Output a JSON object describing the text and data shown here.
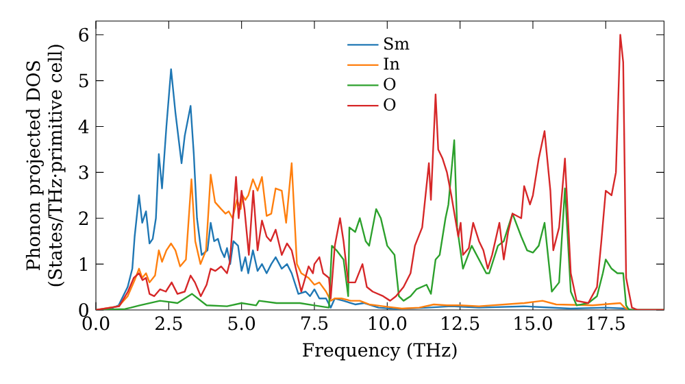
{
  "chart_data": {
    "type": "line",
    "xlabel": "Frequency (THz)",
    "ylabel": "Phonon projected DOS (States/THz·primitive cell)",
    "xlim": [
      0,
      19.5
    ],
    "ylim": [
      0,
      6.3
    ],
    "xticks": [
      {
        "value": 0,
        "label": "0.0"
      },
      {
        "value": 2.5,
        "label": "2.5"
      },
      {
        "value": 5,
        "label": "5.0"
      },
      {
        "value": 7.5,
        "label": "7.5"
      },
      {
        "value": 10,
        "label": "10.0"
      },
      {
        "value": 12.5,
        "label": "12.5"
      },
      {
        "value": 15,
        "label": "15.0"
      },
      {
        "value": 17.5,
        "label": "17.5"
      }
    ],
    "yticks": [
      0,
      1,
      2,
      3,
      4,
      5,
      6
    ],
    "grid": false,
    "legend": "top",
    "marker": "none",
    "line_style": "solid",
    "series": [
      {
        "name": "Sm",
        "color": "#1f77b4",
        "x": [
          0,
          0.47,
          0.78,
          1.09,
          1.25,
          1.33,
          1.48,
          1.59,
          1.72,
          1.84,
          1.95,
          2.06,
          2.16,
          2.27,
          2.42,
          2.58,
          2.73,
          2.94,
          3.05,
          3.25,
          3.36,
          3.47,
          3.63,
          3.83,
          3.94,
          4.06,
          4.19,
          4.3,
          4.41,
          4.5,
          4.61,
          4.72,
          4.88,
          5.0,
          5.13,
          5.23,
          5.39,
          5.55,
          5.7,
          5.86,
          6.02,
          6.17,
          6.38,
          6.56,
          6.72,
          6.95,
          7.2,
          7.35,
          7.5,
          7.67,
          7.9,
          8.06,
          8.2,
          8.5,
          8.9,
          9.2,
          9.7,
          10.3,
          11.4,
          12.2,
          13.15,
          14.7,
          15.33,
          16.3,
          17.5,
          18.2,
          18.4,
          19.5
        ],
        "values": [
          0,
          0.02,
          0.1,
          0.5,
          0.9,
          1.6,
          2.5,
          1.9,
          2.15,
          1.45,
          1.55,
          2.0,
          3.4,
          2.65,
          4.0,
          5.25,
          4.3,
          3.2,
          3.8,
          4.45,
          3.4,
          2.0,
          1.2,
          1.3,
          1.9,
          1.5,
          1.55,
          1.3,
          1.15,
          1.35,
          1.0,
          1.5,
          1.4,
          0.85,
          1.15,
          0.8,
          1.3,
          0.85,
          1.0,
          0.8,
          1.0,
          1.15,
          0.9,
          1.0,
          0.8,
          0.35,
          0.4,
          0.3,
          0.45,
          0.25,
          0.25,
          0.05,
          0.25,
          0.2,
          0.12,
          0.15,
          0.05,
          0.02,
          0.05,
          0.08,
          0.05,
          0.08,
          0.06,
          0.03,
          0.05,
          0.03,
          0,
          0
        ]
      },
      {
        "name": "In",
        "color": "#ff7f0e",
        "x": [
          0,
          0.78,
          1.09,
          1.33,
          1.48,
          1.59,
          1.72,
          1.84,
          2.03,
          2.16,
          2.27,
          2.42,
          2.58,
          2.73,
          2.89,
          3.09,
          3.28,
          3.41,
          3.59,
          3.78,
          3.94,
          4.09,
          4.3,
          4.45,
          4.56,
          4.69,
          4.84,
          4.97,
          5.03,
          5.13,
          5.23,
          5.39,
          5.55,
          5.7,
          5.86,
          6.02,
          6.17,
          6.38,
          6.53,
          6.72,
          6.9,
          7.05,
          7.3,
          7.5,
          7.67,
          7.9,
          8.06,
          8.2,
          8.43,
          8.75,
          9.06,
          9.38,
          9.86,
          10.5,
          11.1,
          11.6,
          12.05,
          12.5,
          13.15,
          14.7,
          15.33,
          15.8,
          17.05,
          18.0,
          18.15,
          18.3,
          19.5
        ],
        "values": [
          0,
          0.08,
          0.3,
          0.65,
          0.9,
          0.7,
          0.8,
          0.6,
          0.75,
          1.3,
          1.05,
          1.3,
          1.45,
          1.3,
          0.95,
          1.1,
          2.85,
          1.5,
          1.0,
          1.3,
          2.95,
          2.35,
          2.2,
          2.1,
          2.15,
          2.0,
          2.4,
          2.2,
          2.5,
          2.4,
          2.5,
          2.85,
          2.6,
          2.9,
          2.05,
          2.1,
          2.65,
          2.6,
          1.9,
          3.2,
          1.0,
          0.8,
          0.7,
          0.55,
          0.6,
          0.4,
          0.2,
          0.25,
          0.25,
          0.2,
          0.2,
          0.12,
          0.08,
          0.03,
          0.05,
          0.12,
          0.1,
          0.1,
          0.08,
          0.15,
          0.2,
          0.12,
          0.1,
          0.15,
          0.05,
          0,
          0
        ]
      },
      {
        "name": "O",
        "color": "#2ca02c",
        "x": [
          0,
          1.0,
          1.2,
          1.5,
          2.2,
          2.8,
          3.3,
          3.8,
          4.5,
          5.0,
          5.5,
          5.6,
          6.2,
          7.0,
          7.5,
          8.0,
          8.1,
          8.26,
          8.5,
          8.66,
          8.7,
          8.9,
          9.06,
          9.26,
          9.38,
          9.62,
          9.78,
          10.0,
          10.25,
          10.4,
          10.56,
          10.8,
          11.0,
          11.35,
          11.5,
          11.66,
          11.8,
          12.0,
          12.1,
          12.3,
          12.4,
          12.6,
          12.9,
          13.15,
          13.4,
          13.5,
          13.8,
          14.0,
          14.3,
          14.6,
          14.8,
          15.0,
          15.2,
          15.4,
          15.65,
          15.9,
          16.1,
          16.3,
          16.5,
          16.9,
          17.2,
          17.4,
          17.5,
          17.7,
          17.9,
          18.1,
          18.2,
          18.3,
          19.5
        ],
        "values": [
          0,
          0.02,
          0.05,
          0.1,
          0.2,
          0.15,
          0.35,
          0.1,
          0.08,
          0.15,
          0.1,
          0.2,
          0.15,
          0.15,
          0.1,
          0.05,
          1.4,
          1.3,
          1.1,
          0.3,
          1.8,
          1.7,
          2.0,
          1.5,
          1.4,
          2.2,
          2.0,
          1.4,
          1.2,
          0.3,
          0.2,
          0.3,
          0.45,
          0.55,
          0.35,
          1.1,
          1.2,
          2.0,
          2.3,
          3.7,
          1.8,
          0.9,
          1.4,
          1.1,
          0.8,
          0.8,
          1.4,
          1.5,
          2.1,
          1.6,
          1.3,
          1.25,
          1.4,
          1.9,
          0.4,
          0.6,
          2.65,
          0.4,
          0.1,
          0.15,
          0.3,
          0.8,
          1.1,
          0.9,
          0.8,
          0.8,
          0.1,
          0,
          0
        ]
      },
      {
        "name": "O",
        "color": "#d62728",
        "x": [
          0,
          0.8,
          1.1,
          1.3,
          1.48,
          1.6,
          1.72,
          1.84,
          2.0,
          2.2,
          2.4,
          2.6,
          2.8,
          3.05,
          3.25,
          3.4,
          3.6,
          3.8,
          3.94,
          4.1,
          4.3,
          4.5,
          4.6,
          4.81,
          4.9,
          5.0,
          5.1,
          5.25,
          5.4,
          5.55,
          5.7,
          5.86,
          6.0,
          6.17,
          6.38,
          6.56,
          6.72,
          6.9,
          7.05,
          7.3,
          7.45,
          7.5,
          7.67,
          7.8,
          8.0,
          8.06,
          8.2,
          8.38,
          8.5,
          8.66,
          8.9,
          9.15,
          9.3,
          9.5,
          9.86,
          10.1,
          10.3,
          10.56,
          10.8,
          10.95,
          11.2,
          11.43,
          11.5,
          11.66,
          11.75,
          11.9,
          12.05,
          12.2,
          12.44,
          12.52,
          12.6,
          12.8,
          12.95,
          13.15,
          13.3,
          13.45,
          13.6,
          13.85,
          14.0,
          14.15,
          14.3,
          14.6,
          14.7,
          14.9,
          15.0,
          15.2,
          15.4,
          15.6,
          15.7,
          15.9,
          16.1,
          16.3,
          16.5,
          16.9,
          17.2,
          17.35,
          17.5,
          17.7,
          17.85,
          18.0,
          18.1,
          18.2,
          18.4,
          18.6,
          19.5
        ],
        "values": [
          0,
          0.08,
          0.4,
          0.7,
          0.8,
          0.65,
          0.7,
          0.35,
          0.3,
          0.45,
          0.4,
          0.6,
          0.35,
          0.4,
          0.75,
          0.6,
          0.3,
          0.55,
          0.9,
          0.85,
          0.95,
          0.8,
          1.05,
          2.9,
          2.0,
          2.6,
          2.2,
          1.2,
          2.6,
          1.3,
          1.95,
          1.6,
          1.5,
          1.75,
          1.2,
          1.45,
          1.3,
          0.8,
          0.4,
          0.95,
          0.8,
          1.0,
          1.15,
          0.8,
          0.7,
          0.25,
          1.4,
          2.0,
          1.5,
          0.6,
          0.6,
          1.0,
          0.5,
          0.4,
          0.3,
          0.2,
          0.3,
          0.5,
          0.8,
          1.4,
          1.8,
          3.2,
          2.4,
          4.7,
          3.5,
          3.3,
          3.0,
          2.5,
          1.6,
          1.9,
          1.2,
          1.35,
          1.9,
          1.5,
          1.3,
          0.9,
          1.2,
          1.9,
          1.1,
          1.7,
          2.1,
          2.0,
          2.7,
          2.3,
          2.5,
          3.3,
          3.9,
          2.6,
          1.3,
          1.8,
          3.3,
          0.8,
          0.2,
          0.15,
          0.5,
          1.5,
          2.6,
          2.5,
          3.0,
          6.0,
          5.4,
          0.7,
          0.05,
          0,
          0
        ]
      }
    ]
  }
}
